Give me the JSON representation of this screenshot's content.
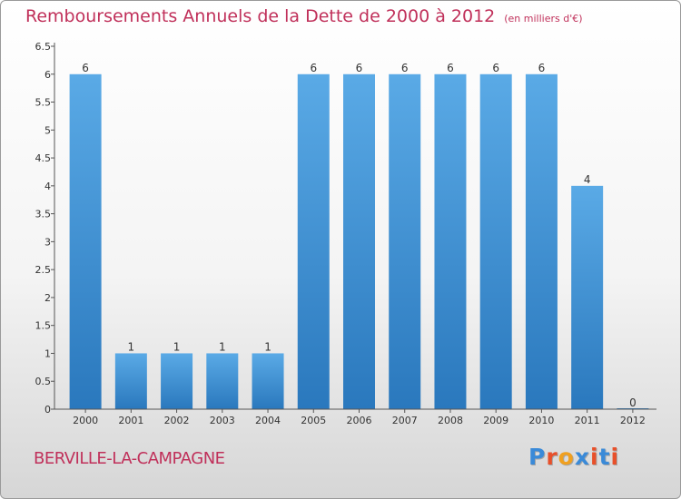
{
  "chart_data": {
    "type": "bar",
    "title": "Remboursements Annuels de la Dette de 2000 à 2012",
    "subtitle": "(en milliers d'€)",
    "categories": [
      "2000",
      "2001",
      "2002",
      "2003",
      "2004",
      "2005",
      "2006",
      "2007",
      "2008",
      "2009",
      "2010",
      "2011",
      "2012"
    ],
    "values": [
      6,
      1,
      1,
      1,
      1,
      6,
      6,
      6,
      6,
      6,
      6,
      4,
      0
    ],
    "data_labels": [
      "6",
      "1",
      "1",
      "1",
      "1",
      "6",
      "6",
      "6",
      "6",
      "6",
      "6",
      "4",
      "0"
    ],
    "ylim": [
      0,
      6.5
    ],
    "y_ticks": [
      "0",
      "0.5",
      "1",
      "1.5",
      "2",
      "2.5",
      "3",
      "3.5",
      "4",
      "4.5",
      "5",
      "5.5",
      "6",
      "6.5"
    ],
    "xlabel": "",
    "ylabel": "",
    "grid": false,
    "bar_color_top": "#5aaae6",
    "bar_color_bottom": "#2a78bd"
  },
  "footer": {
    "place": "BERVILLE-LA-CAMPAGNE",
    "logo": "Proxiti",
    "logo_colors": [
      "#3a8ad8",
      "#e8502a",
      "#f0a020",
      "#3a8ad8",
      "#e8502a",
      "#3a8ad8",
      "#e8502a"
    ]
  },
  "colors": {
    "title": "#c0305a",
    "axis": "#555555",
    "tick_text": "#333333"
  }
}
